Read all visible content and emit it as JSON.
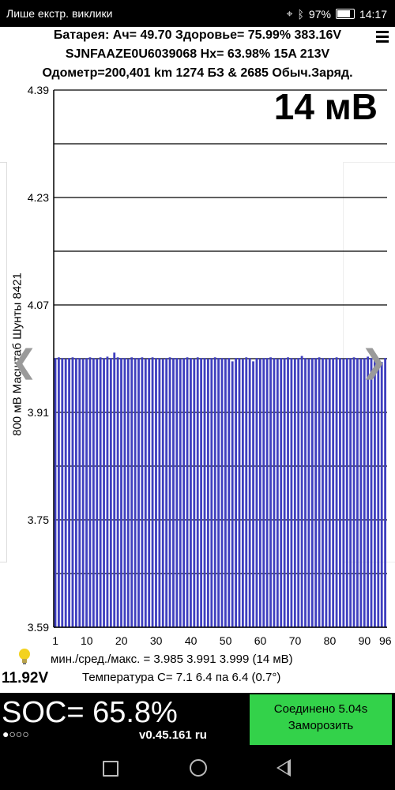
{
  "status_bar": {
    "notification": "Лише екстр. виклики",
    "battery_percent": "97%",
    "time": "14:17"
  },
  "header": {
    "line1": "Батарея: Ач= 49.70 Здоровье= 75.99% 383.16V",
    "line2": "SJNFAAZE0U6039068   Hx= 63.98% 15A 213V",
    "line3": "Одометр=200,401 km 1274 БЗ & 2685 Обыч.Заряд."
  },
  "readout": "14 мВ",
  "ylabel": "800 мВ Масштаб   Шунты 8421",
  "stats": "мин./сред./макс. = 3.985 3.991 3.999  (14 мВ)",
  "temperature": "Температура С= 7.1  6.4  па  6.4  (0.7°)",
  "voltage": "11.92V",
  "soc": "SOC= 65.8%",
  "dots": "●○○○",
  "version": "v0.45.161 ru",
  "connect": {
    "line1": "Соединено 5.04s",
    "line2": "Заморозить"
  },
  "colors": {
    "bar_fill": "#3f3fbf",
    "connect_bg": "#33d24a"
  },
  "chart_data": {
    "type": "bar",
    "ylim": [
      3.59,
      4.39
    ],
    "y_ticks": [
      "4.39",
      "4.23",
      "4.07",
      "3.91",
      "3.75",
      "3.59"
    ],
    "x_ticks": [
      "1",
      "10",
      "20",
      "30",
      "40",
      "50",
      "60",
      "70",
      "80",
      "90",
      "96"
    ],
    "categories_count": 96,
    "values": [
      3.991,
      3.992,
      3.991,
      3.99,
      3.991,
      3.992,
      3.991,
      3.991,
      3.99,
      3.991,
      3.992,
      3.991,
      3.99,
      3.992,
      3.991,
      3.993,
      3.991,
      3.999,
      3.992,
      3.991,
      3.991,
      3.99,
      3.992,
      3.991,
      3.991,
      3.992,
      3.99,
      3.991,
      3.992,
      3.991,
      3.991,
      3.99,
      3.991,
      3.992,
      3.991,
      3.991,
      3.99,
      3.991,
      3.992,
      3.991,
      3.99,
      3.992,
      3.991,
      3.991,
      3.99,
      3.991,
      3.992,
      3.991,
      3.991,
      3.99,
      3.991,
      3.986,
      3.991,
      3.991,
      3.99,
      3.992,
      3.991,
      3.986,
      3.991,
      3.99,
      3.991,
      3.991,
      3.992,
      3.991,
      3.99,
      3.991,
      3.991,
      3.992,
      3.991,
      3.99,
      3.991,
      3.994,
      3.991,
      3.99,
      3.991,
      3.991,
      3.992,
      3.991,
      3.99,
      3.991,
      3.991,
      3.992,
      3.991,
      3.99,
      3.991,
      3.991,
      3.992,
      3.991,
      3.99,
      3.991,
      3.993,
      3.991,
      3.99,
      3.991,
      3.985,
      3.991
    ],
    "grid": true
  }
}
